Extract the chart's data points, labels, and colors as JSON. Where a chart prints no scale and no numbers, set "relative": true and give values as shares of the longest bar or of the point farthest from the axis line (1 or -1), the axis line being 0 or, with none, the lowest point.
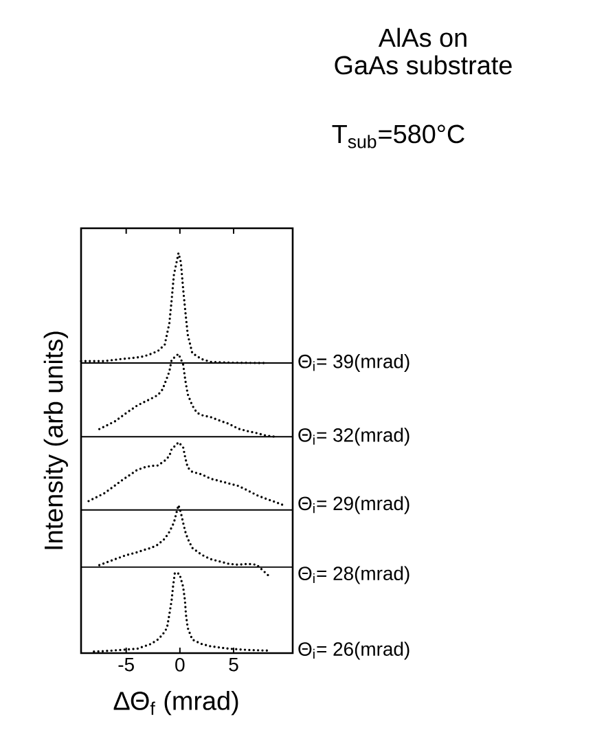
{
  "chart_data": {
    "type": "line",
    "title": "AlAs on",
    "subtitle": "GaAs substrate",
    "annotations": [
      "T$_{sub}$=580°C"
    ],
    "xlabel": "ΔΘ$_{f}$ (mrad)",
    "ylabel": "Intensity (arb units)",
    "relative": true,
    "tick_labels": "x",
    "line_style": "dotted",
    "marker": "none",
    "xlim": [
      -9.2,
      10.5
    ],
    "xticks": [
      -5,
      0,
      5
    ],
    "series": [
      {
        "name": "Θ$_{i}$= 39(mrad)",
        "color": "#000000",
        "x": [
          -9.2,
          -7,
          -5.5,
          -3.97,
          -3.33,
          -2.69,
          -2.05,
          -1.41,
          -0.98,
          -0.77,
          -0.56,
          -0.13,
          0.09,
          0.3,
          0.51,
          0.73,
          1.15,
          2.01,
          2.86,
          4.57,
          7.99
        ],
        "values": [
          0.73,
          0.73,
          0.735,
          0.739,
          0.742,
          0.748,
          0.755,
          0.771,
          0.825,
          0.882,
          0.945,
          1.0,
          0.977,
          0.911,
          0.853,
          0.796,
          0.75,
          0.735,
          0.728,
          0.726,
          0.725
        ]
      },
      {
        "name": "Θ$_{i}$= 32(mrad)",
        "color": "#000000",
        "x": [
          -7.5,
          -6,
          -5,
          -3.97,
          -2.69,
          -2.05,
          -1.62,
          -1.2,
          -0.98,
          -0.77,
          -0.13,
          0.3,
          0.51,
          0.73,
          1.15,
          1.58,
          2.01,
          2.86,
          3.72,
          4.57,
          5.43,
          6.28,
          7.14,
          7.99,
          8.85
        ],
        "values": [
          0.56,
          0.58,
          0.6,
          0.619,
          0.636,
          0.645,
          0.659,
          0.688,
          0.704,
          0.733,
          0.748,
          0.722,
          0.681,
          0.647,
          0.619,
          0.601,
          0.595,
          0.59,
          0.581,
          0.573,
          0.561,
          0.555,
          0.55,
          0.544,
          0.541
        ]
      },
      {
        "name": "Θ$_{i}$= 29(mrad)",
        "color": "#000000",
        "x": [
          -8.5,
          -7,
          -5.5,
          -3.97,
          -3.33,
          -2.69,
          -2.05,
          -1.41,
          -0.98,
          -0.77,
          -0.34,
          -0.13,
          0.3,
          0.51,
          0.73,
          1.15,
          2.01,
          2.86,
          3.72,
          4.57,
          5.43,
          6.28,
          7.14,
          7.99,
          8.85,
          9.62
        ],
        "values": [
          0.38,
          0.4,
          0.43,
          0.458,
          0.464,
          0.468,
          0.469,
          0.481,
          0.493,
          0.51,
          0.521,
          0.527,
          0.515,
          0.487,
          0.464,
          0.453,
          0.447,
          0.436,
          0.43,
          0.424,
          0.418,
          0.407,
          0.395,
          0.386,
          0.378,
          0.37
        ]
      },
      {
        "name": "Θ$_{i}$= 28(mrad)",
        "color": "#000000",
        "x": [
          -7.5,
          -6,
          -5,
          -3.97,
          -3.33,
          -2.69,
          -2.05,
          -1.41,
          -0.98,
          -0.56,
          -0.34,
          -0.13,
          0.09,
          0.3,
          0.51,
          0.73,
          1.15,
          2.01,
          2.86,
          3.72,
          4.57,
          5.43,
          6.28,
          7.14,
          8.2
        ],
        "values": [
          0.22,
          0.235,
          0.245,
          0.252,
          0.258,
          0.263,
          0.271,
          0.286,
          0.303,
          0.326,
          0.349,
          0.37,
          0.351,
          0.326,
          0.303,
          0.286,
          0.263,
          0.246,
          0.235,
          0.229,
          0.223,
          0.221,
          0.223,
          0.221,
          0.195
        ]
      },
      {
        "name": "Θ$_{i}$= 26(mrad)",
        "color": "#000000",
        "x": [
          -8,
          -7,
          -5.5,
          -3.97,
          -2.69,
          -2.05,
          -1.62,
          -1.2,
          -0.98,
          -0.77,
          -0.64,
          -0.47,
          -0.04,
          0.3,
          0.47,
          0.56,
          0.73,
          1.15,
          2.01,
          2.86,
          4.57,
          6.28,
          8.42
        ],
        "values": [
          0.004,
          0.005,
          0.008,
          0.011,
          0.023,
          0.034,
          0.046,
          0.063,
          0.097,
          0.132,
          0.166,
          0.201,
          0.198,
          0.166,
          0.132,
          0.097,
          0.063,
          0.034,
          0.023,
          0.017,
          0.011,
          0.008,
          0.006
        ]
      }
    ],
    "ref_lines": [
      {
        "axis": "y",
        "value": 0.725
      },
      {
        "axis": "y",
        "value": 0.541
      },
      {
        "axis": "y",
        "value": 0.358
      },
      {
        "axis": "y",
        "value": 0.215
      }
    ]
  }
}
